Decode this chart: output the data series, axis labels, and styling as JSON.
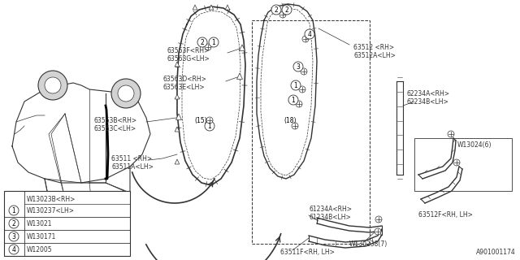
{
  "bg_color": "#ffffff",
  "line_color": "#333333",
  "diagram_id": "A901001174",
  "legend": [
    {
      "num": "1",
      "row1": "W13023B<RH>",
      "row2": "W130237<LH>"
    },
    {
      "num": "2",
      "row1": "W13021",
      "row2": null
    },
    {
      "num": "3",
      "row1": "W130171",
      "row2": null
    },
    {
      "num": "4",
      "row1": "W12005",
      "row2": null
    }
  ]
}
